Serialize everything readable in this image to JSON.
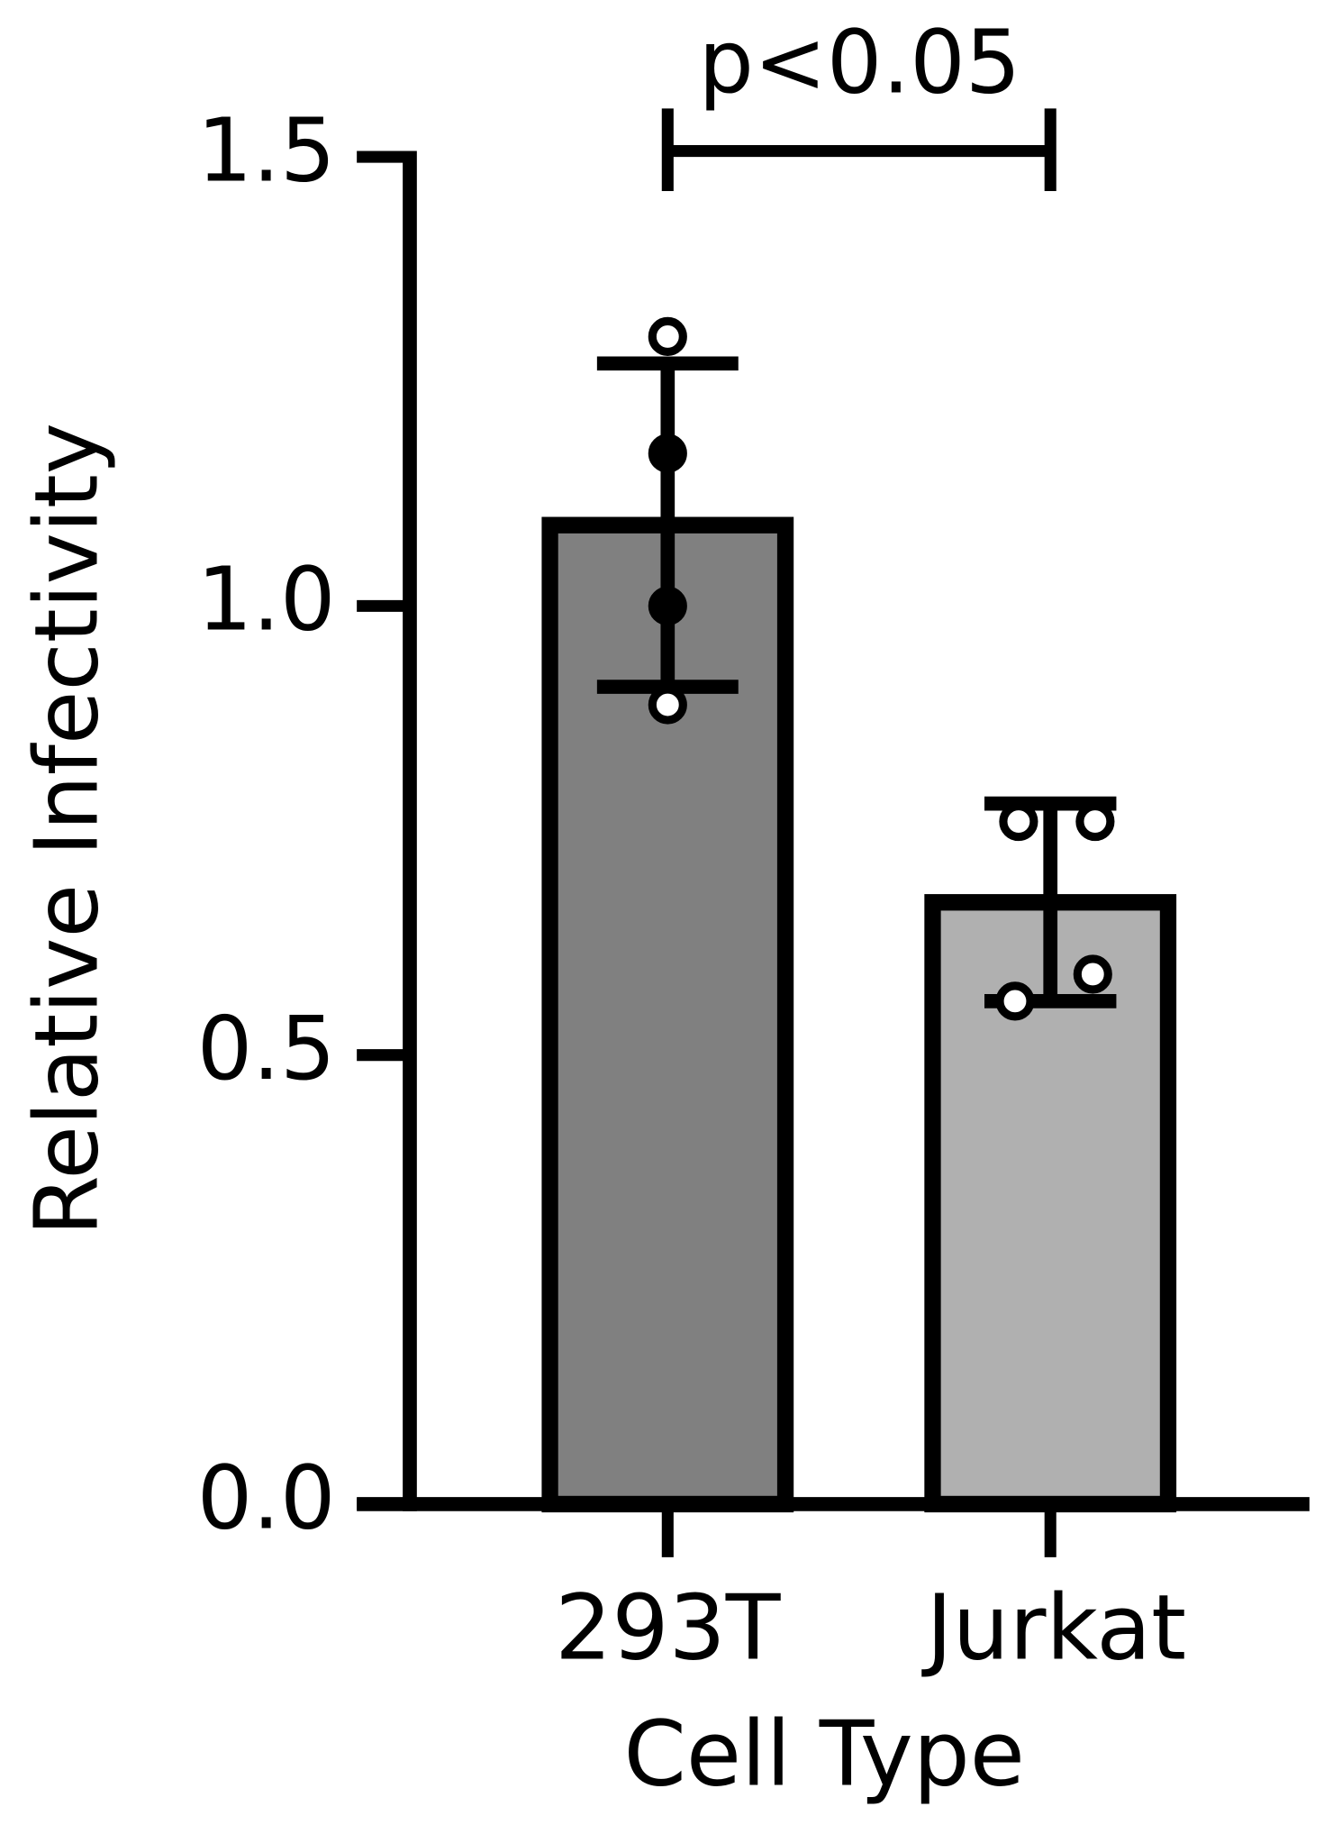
{
  "chart_data": {
    "type": "bar",
    "annotation": "p<0.05",
    "xlabel": "Cell Type",
    "ylabel": "Relative Infectivity",
    "categories": [
      "293T",
      "Jurkat"
    ],
    "values": [
      1.09,
      0.67
    ],
    "errors": [
      0.18,
      0.11
    ],
    "colors": [
      "#808080",
      "#b0b0b0"
    ],
    "points": [
      [
        1.3,
        1.17,
        1.0,
        0.89
      ],
      [
        0.76,
        0.76,
        0.59,
        0.56
      ]
    ],
    "point_colors": [
      [
        "#ffffff",
        "#000000",
        "#000000",
        "#ffffff"
      ],
      [
        "#ffffff",
        "#ffffff",
        "#ffffff",
        "#ffffff"
      ]
    ],
    "ylim": [
      0,
      1.5
    ],
    "yticks": [
      {
        "value": 0,
        "label": "0.0"
      },
      {
        "value": 0.5,
        "label": "0.5"
      },
      {
        "value": 1,
        "label": "1.0"
      },
      {
        "value": 1.5,
        "label": "1.5"
      }
    ],
    "grid": false
  }
}
